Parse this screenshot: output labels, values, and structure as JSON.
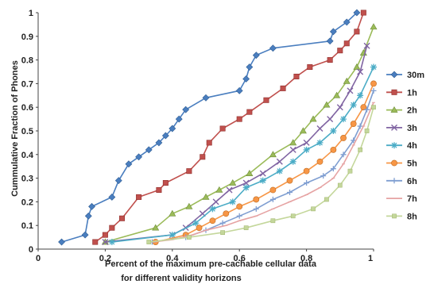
{
  "chart_data": {
    "type": "line",
    "title": "",
    "xlabel": "Percent of the maximum pre-cachable cellular data",
    "xlabel_line2": "for different validity horizons",
    "ylabel": "Cummulative Fraction of Phones",
    "xlim": [
      0,
      1
    ],
    "ylim": [
      0,
      1
    ],
    "xticks": [
      "0",
      "0.2",
      "0.4",
      "0.6",
      "0.8",
      "1"
    ],
    "yticks": [
      "0",
      "0.1",
      "0.2",
      "0.3",
      "0.4",
      "0.5",
      "0.6",
      "0.7",
      "0.8",
      "0.9",
      "1"
    ],
    "grid": false,
    "legend_position": "right",
    "series": [
      {
        "name": "30m",
        "color": "#4a7ebf",
        "marker": "diamond",
        "x": [
          0.07,
          0.14,
          0.15,
          0.16,
          0.22,
          0.24,
          0.27,
          0.3,
          0.33,
          0.36,
          0.38,
          0.4,
          0.42,
          0.44,
          0.5,
          0.6,
          0.62,
          0.63,
          0.65,
          0.7,
          0.87,
          0.88,
          0.92,
          0.95
        ],
        "y": [
          0.03,
          0.06,
          0.14,
          0.18,
          0.22,
          0.29,
          0.36,
          0.39,
          0.42,
          0.45,
          0.48,
          0.51,
          0.55,
          0.59,
          0.64,
          0.67,
          0.72,
          0.77,
          0.82,
          0.85,
          0.88,
          0.92,
          0.96,
          1.0
        ]
      },
      {
        "name": "1h",
        "color": "#c0504d",
        "marker": "square",
        "x": [
          0.17,
          0.2,
          0.22,
          0.25,
          0.3,
          0.36,
          0.38,
          0.45,
          0.49,
          0.51,
          0.55,
          0.6,
          0.63,
          0.68,
          0.73,
          0.77,
          0.81,
          0.87,
          0.9,
          0.92,
          0.95,
          0.97
        ],
        "y": [
          0.03,
          0.06,
          0.09,
          0.13,
          0.22,
          0.25,
          0.28,
          0.33,
          0.39,
          0.45,
          0.51,
          0.55,
          0.58,
          0.63,
          0.68,
          0.73,
          0.77,
          0.8,
          0.84,
          0.87,
          0.92,
          1.0
        ]
      },
      {
        "name": "2h",
        "color": "#9bbb59",
        "marker": "triangle",
        "x": [
          0.2,
          0.35,
          0.4,
          0.45,
          0.5,
          0.54,
          0.58,
          0.63,
          0.7,
          0.76,
          0.79,
          0.82,
          0.86,
          0.89,
          0.92,
          0.95,
          0.97,
          1.0
        ],
        "y": [
          0.03,
          0.09,
          0.15,
          0.18,
          0.22,
          0.25,
          0.28,
          0.32,
          0.4,
          0.45,
          0.5,
          0.55,
          0.61,
          0.65,
          0.71,
          0.77,
          0.83,
          0.94
        ]
      },
      {
        "name": "3h",
        "color": "#8064a2",
        "marker": "x",
        "x": [
          0.2,
          0.4,
          0.44,
          0.49,
          0.53,
          0.57,
          0.62,
          0.67,
          0.72,
          0.76,
          0.8,
          0.84,
          0.87,
          0.9,
          0.93,
          0.96,
          0.98
        ],
        "y": [
          0.03,
          0.06,
          0.09,
          0.15,
          0.2,
          0.25,
          0.28,
          0.32,
          0.37,
          0.42,
          0.45,
          0.51,
          0.55,
          0.6,
          0.67,
          0.75,
          0.86
        ]
      },
      {
        "name": "4h",
        "color": "#4bacc6",
        "marker": "star",
        "x": [
          0.22,
          0.4,
          0.47,
          0.52,
          0.58,
          0.62,
          0.67,
          0.72,
          0.76,
          0.8,
          0.84,
          0.88,
          0.91,
          0.94,
          0.96,
          1.0
        ],
        "y": [
          0.03,
          0.06,
          0.11,
          0.17,
          0.2,
          0.26,
          0.29,
          0.33,
          0.37,
          0.42,
          0.45,
          0.5,
          0.55,
          0.61,
          0.65,
          0.77
        ]
      },
      {
        "name": "5h",
        "color": "#f79646",
        "marker": "circle",
        "x": [
          0.35,
          0.44,
          0.48,
          0.52,
          0.56,
          0.6,
          0.65,
          0.7,
          0.75,
          0.8,
          0.84,
          0.88,
          0.91,
          0.94,
          0.97,
          1.0
        ],
        "y": [
          0.03,
          0.06,
          0.09,
          0.12,
          0.15,
          0.18,
          0.21,
          0.25,
          0.29,
          0.33,
          0.37,
          0.42,
          0.47,
          0.53,
          0.6,
          0.7
        ]
      },
      {
        "name": "6h",
        "color": "#7f9ed1",
        "marker": "plus",
        "x": [
          0.34,
          0.44,
          0.5,
          0.55,
          0.6,
          0.65,
          0.7,
          0.75,
          0.8,
          0.85,
          0.88,
          0.91,
          0.94,
          0.96,
          0.98,
          1.0
        ],
        "y": [
          0.03,
          0.05,
          0.08,
          0.11,
          0.14,
          0.17,
          0.21,
          0.24,
          0.28,
          0.31,
          0.34,
          0.4,
          0.46,
          0.52,
          0.59,
          0.67
        ]
      },
      {
        "name": "7h",
        "color": "#e6a3a3",
        "marker": "none",
        "x": [
          0.34,
          0.4,
          0.46,
          0.5,
          0.56,
          0.6,
          0.65,
          0.7,
          0.75,
          0.8,
          0.84,
          0.88,
          0.91,
          0.94,
          0.97,
          1.0
        ],
        "y": [
          0.03,
          0.04,
          0.06,
          0.08,
          0.1,
          0.12,
          0.14,
          0.17,
          0.2,
          0.23,
          0.26,
          0.3,
          0.36,
          0.44,
          0.52,
          0.62
        ]
      },
      {
        "name": "8h",
        "color": "#c4d79b",
        "marker": "square-small",
        "x": [
          0.33,
          0.45,
          0.55,
          0.62,
          0.7,
          0.76,
          0.82,
          0.86,
          0.9,
          0.93,
          0.96,
          0.98,
          1.0
        ],
        "y": [
          0.03,
          0.05,
          0.07,
          0.09,
          0.12,
          0.14,
          0.17,
          0.21,
          0.27,
          0.33,
          0.42,
          0.5,
          0.6
        ]
      }
    ]
  }
}
